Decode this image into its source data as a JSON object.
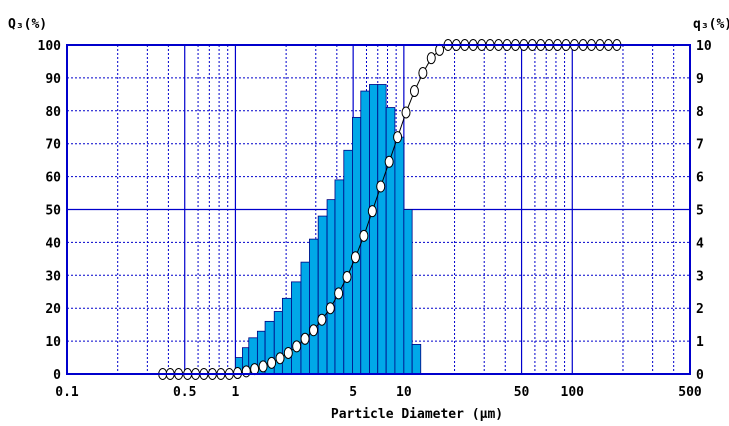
{
  "chart_data": {
    "type": "bar",
    "left_axis_label": "Q₃(%)",
    "right_axis_label": "q₃(%)",
    "xlabel": "Particle Diameter (µm)",
    "x_scale": "log",
    "xlim": [
      0.1,
      500
    ],
    "ylim_left": [
      0,
      100
    ],
    "ylim_right": [
      0,
      10
    ],
    "x_ticks": [
      {
        "value": 0.1,
        "label": "0.1"
      },
      {
        "value": 0.5,
        "label": "0.5"
      },
      {
        "value": 1,
        "label": "1"
      },
      {
        "value": 5,
        "label": "5"
      },
      {
        "value": 10,
        "label": "10"
      },
      {
        "value": 50,
        "label": "50"
      },
      {
        "value": 100,
        "label": "100"
      },
      {
        "value": 500,
        "label": "500"
      }
    ],
    "y_left_ticks": [
      "0",
      "10",
      "20",
      "30",
      "40",
      "50",
      "60",
      "70",
      "80",
      "90",
      "100"
    ],
    "y_right_ticks": [
      "0",
      "1",
      "2",
      "3",
      "4",
      "5",
      "6",
      "7",
      "8",
      "9",
      "10"
    ],
    "grid": true,
    "colors": {
      "frame": "#0000cc",
      "grid": "#0000cc",
      "bar_fill": "#00a8e8",
      "bar_edge": "#000080",
      "marker_fill": "#ffffff",
      "marker_edge": "#000000"
    },
    "series": [
      {
        "kind": "bar",
        "axis": "right",
        "bin_edges": [
          1.0,
          1.1,
          1.2,
          1.35,
          1.5,
          1.7,
          1.9,
          2.15,
          2.45,
          2.75,
          3.1,
          3.5,
          3.9,
          4.4,
          4.95,
          5.55,
          6.25,
          7.0,
          7.85,
          8.85,
          10.0,
          11.2,
          12.6
        ],
        "values": [
          0.5,
          0.8,
          1.1,
          1.3,
          1.6,
          1.9,
          2.3,
          2.8,
          3.4,
          4.1,
          4.8,
          5.3,
          5.9,
          6.8,
          7.8,
          8.6,
          8.8,
          8.8,
          8.1,
          7.2,
          5.0,
          0.9
        ]
      },
      {
        "kind": "line-markers",
        "axis": "left",
        "x": [
          0.37,
          0.41,
          0.46,
          0.52,
          0.58,
          0.65,
          0.73,
          0.82,
          0.92,
          1.03,
          1.16,
          1.3,
          1.46,
          1.64,
          1.84,
          2.06,
          2.31,
          2.59,
          2.91,
          3.26,
          3.66,
          4.1,
          4.6,
          5.16,
          5.79,
          6.5,
          7.29,
          8.18,
          9.18,
          10.3,
          11.56,
          12.97,
          14.55,
          16.3,
          18.3,
          20.5,
          23.0,
          25.8,
          29.0,
          32.5,
          36.5,
          41.0,
          46.0,
          51.6,
          57.9,
          65.0,
          72.9,
          81.8,
          91.8,
          103,
          116,
          130,
          146,
          164,
          184
        ],
        "y": [
          0,
          0,
          0,
          0,
          0,
          0,
          0,
          0,
          0,
          0.3,
          0.8,
          1.5,
          2.3,
          3.4,
          4.8,
          6.4,
          8.4,
          10.7,
          13.3,
          16.5,
          20.0,
          24.5,
          29.5,
          35.5,
          42.0,
          49.5,
          57.0,
          64.5,
          72.0,
          79.5,
          86.0,
          91.5,
          96.0,
          98.5,
          100,
          100,
          100,
          100,
          100,
          100,
          100,
          100,
          100,
          100,
          100,
          100,
          100,
          100,
          100,
          100,
          100,
          100,
          100,
          100,
          100
        ]
      }
    ]
  }
}
